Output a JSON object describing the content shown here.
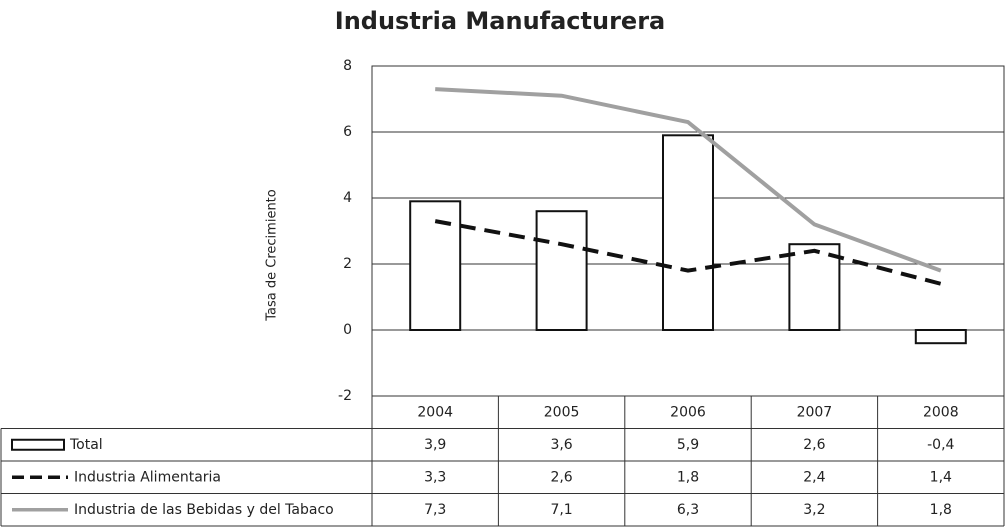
{
  "chart_data": {
    "type": "bar",
    "title": "Industria Manufacturera",
    "y_label": "Tasa de Crecimiento",
    "categories": [
      "2004",
      "2005",
      "2006",
      "2007",
      "2008"
    ],
    "ylim": [
      -2,
      8
    ],
    "yticks": [
      8,
      6,
      4,
      2,
      0,
      -2
    ],
    "grid": true,
    "series": [
      {
        "name": "Total",
        "kind": "bar",
        "color": "#111111",
        "fill": "#ffffff",
        "values": [
          3.9,
          3.6,
          5.9,
          2.6,
          -0.4
        ],
        "value_labels": [
          "3,9",
          "3,6",
          "5,9",
          "2,6",
          "-0,4"
        ]
      },
      {
        "name": "Industria Alimentaria",
        "kind": "line",
        "dashed": true,
        "color": "#111111",
        "values": [
          3.3,
          2.6,
          1.8,
          2.4,
          1.4
        ],
        "value_labels": [
          "3,3",
          "2,6",
          "1,8",
          "2,4",
          "1,4"
        ]
      },
      {
        "name": "Industria de las Bebidas y del Tabaco",
        "kind": "line",
        "dashed": false,
        "color": "#a0a0a0",
        "values": [
          7.3,
          7.1,
          6.3,
          3.2,
          1.8
        ],
        "value_labels": [
          "7,3",
          "7,1",
          "6,3",
          "3,2",
          "1,8"
        ]
      }
    ]
  }
}
